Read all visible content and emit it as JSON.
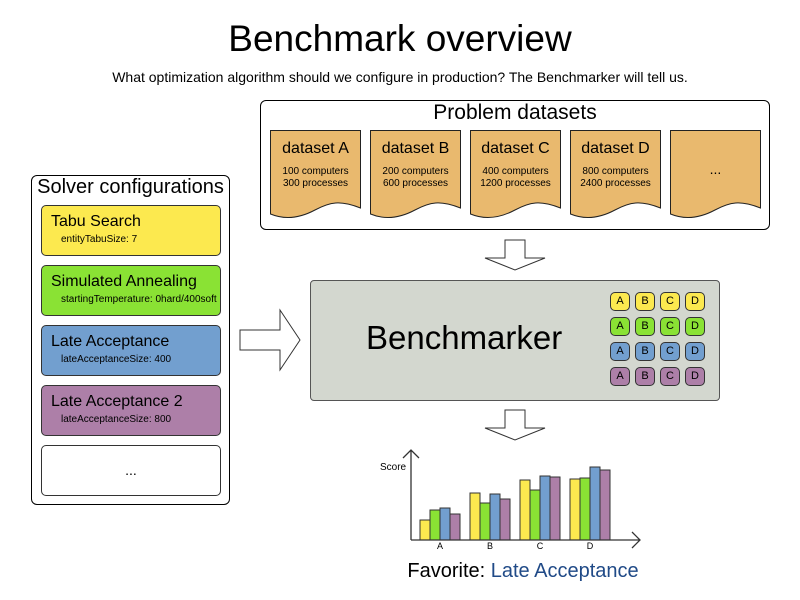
{
  "title": "Benchmark overview",
  "subtitle": "What optimization algorithm should we configure in production? The Benchmarker will tell us.",
  "datasets": {
    "title": "Problem datasets",
    "items": [
      {
        "name": "dataset A",
        "line1": "100 computers",
        "line2": "300 processes"
      },
      {
        "name": "dataset B",
        "line1": "200 computers",
        "line2": "600 processes"
      },
      {
        "name": "dataset C",
        "line1": "400 computers",
        "line2": "1200 processes"
      },
      {
        "name": "dataset D",
        "line1": "800 computers",
        "line2": "2400 processes"
      },
      {
        "name": "...",
        "line1": "",
        "line2": ""
      }
    ]
  },
  "solvers": {
    "title": "Solver configurations",
    "items": [
      {
        "name": "Tabu Search",
        "param": "entityTabuSize: 7",
        "color": "#fce94f"
      },
      {
        "name": "Simulated Annealing",
        "param": "startingTemperature: 0hard/400soft",
        "color": "#8ae234"
      },
      {
        "name": "Late Acceptance",
        "param": "lateAcceptanceSize: 400",
        "color": "#729fcf"
      },
      {
        "name": "Late Acceptance 2",
        "param": "lateAcceptanceSize: 800",
        "color": "#ad7fa8"
      },
      {
        "name": "...",
        "param": "",
        "color": "#ffffff"
      }
    ]
  },
  "benchmarker": {
    "label": "Benchmarker",
    "chip_labels": [
      "A",
      "B",
      "C",
      "D"
    ]
  },
  "dataset_color": "#e9b96e",
  "chart_data": {
    "type": "bar",
    "ylabel": "Score",
    "categories": [
      "A",
      "B",
      "C",
      "D"
    ],
    "series": [
      {
        "values": [
          20,
          47,
          60,
          61
        ],
        "color": "#fce94f"
      },
      {
        "values": [
          30,
          37,
          50,
          62
        ],
        "color": "#8ae234"
      },
      {
        "values": [
          32,
          46,
          64,
          73
        ],
        "color": "#729fcf"
      },
      {
        "values": [
          26,
          41,
          63,
          70
        ],
        "color": "#ad7fa8"
      }
    ]
  },
  "favorite": {
    "prefix": "Favorite: ",
    "value": "Late Acceptance",
    "value_color": "#204a87"
  }
}
